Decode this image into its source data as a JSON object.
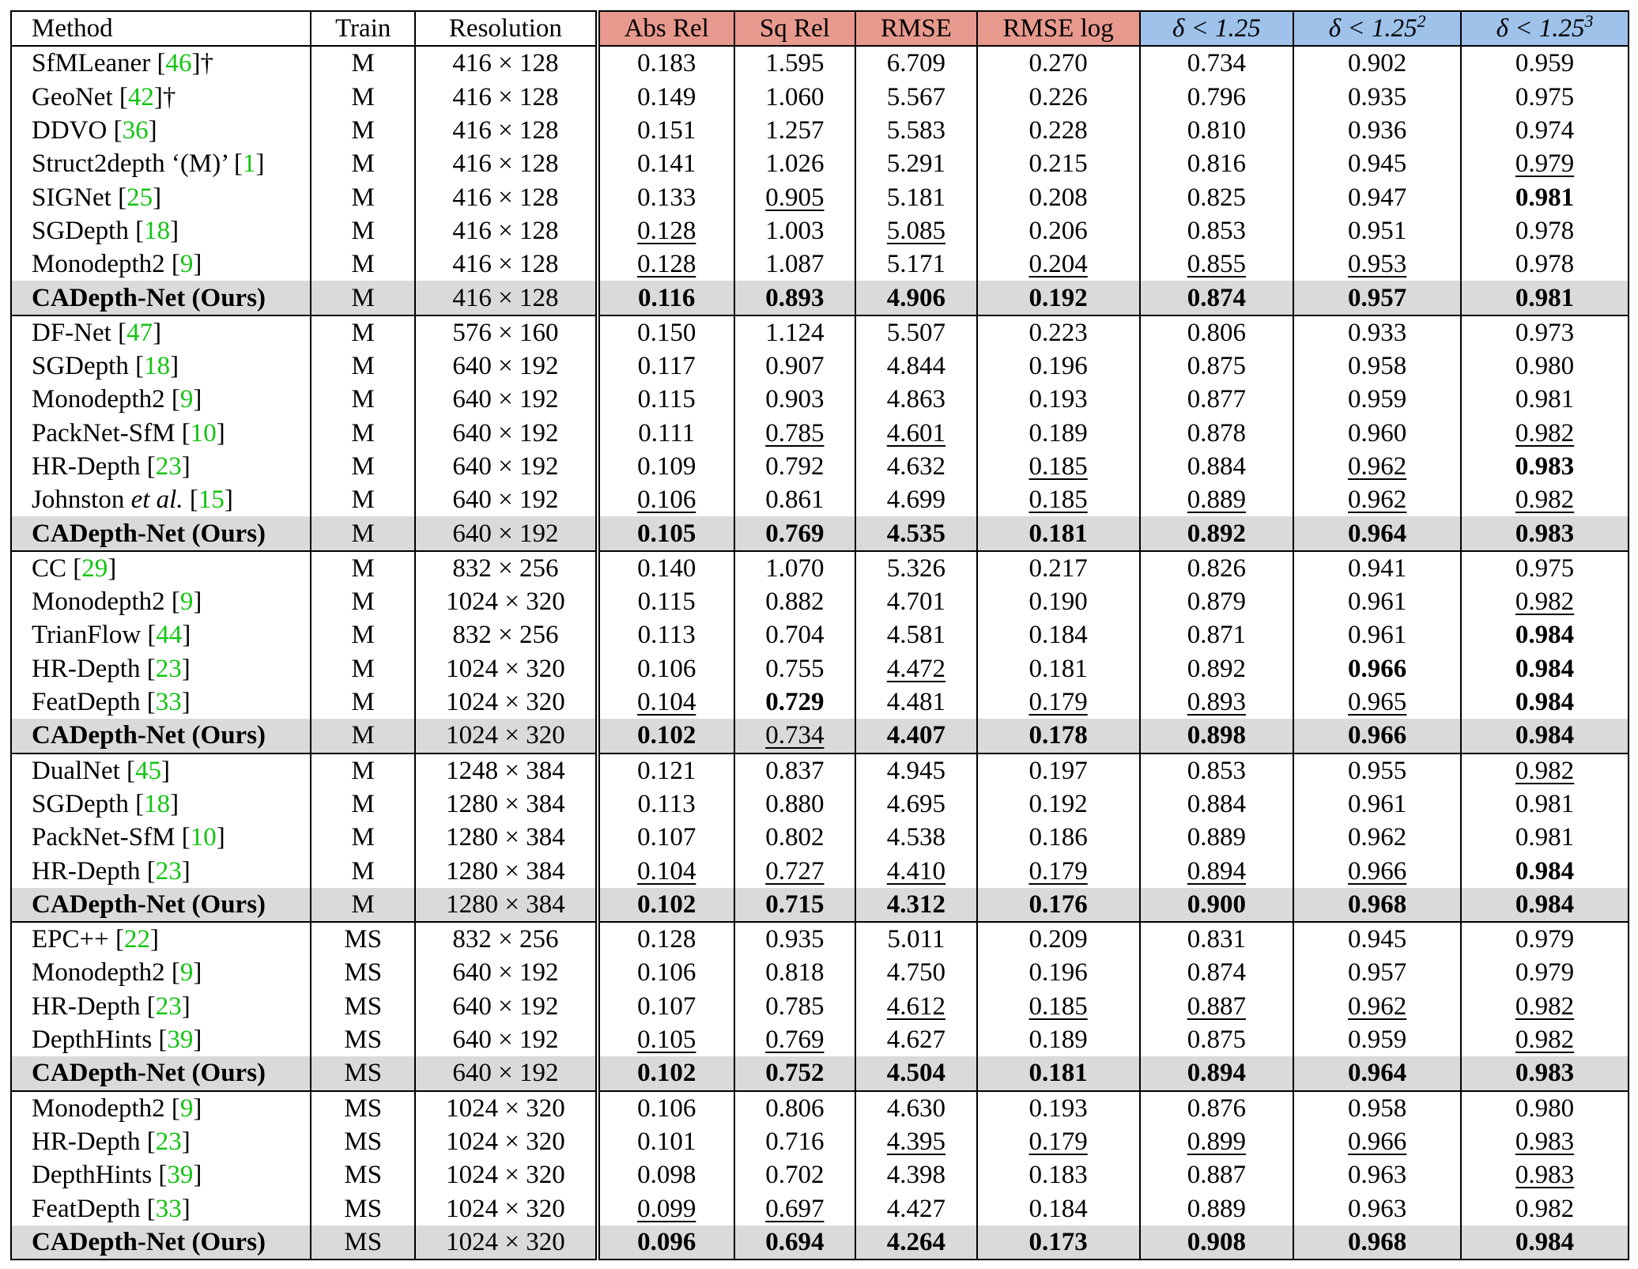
{
  "table": {
    "headers": {
      "method": "Method",
      "train": "Train",
      "resolution": "Resolution",
      "abs_rel": "Abs Rel",
      "sq_rel": "Sq Rel",
      "rmse": "RMSE",
      "rmse_log": "RMSE log",
      "a1": "δ < 1.25",
      "a2": "δ < 1.25²",
      "a3": "δ < 1.25³"
    },
    "header_colors": {
      "error_metrics": "#e8998d",
      "accuracy_metrics": "#9ec2ea",
      "ours_row": "#dadada",
      "citation": "#12c412"
    },
    "groups": [
      {
        "rows": [
          {
            "method": "SfMLeaner",
            "ref": "46",
            "dagger": "†",
            "train": "M",
            "resolution": "416 × 128",
            "values": [
              "0.183",
              "1.595",
              "6.709",
              "0.270",
              "0.734",
              "0.902",
              "0.959"
            ],
            "bold": [],
            "underline": []
          },
          {
            "method": "GeoNet",
            "ref": "42",
            "dagger": "†",
            "train": "M",
            "resolution": "416 × 128",
            "values": [
              "0.149",
              "1.060",
              "5.567",
              "0.226",
              "0.796",
              "0.935",
              "0.975"
            ],
            "bold": [],
            "underline": []
          },
          {
            "method": "DDVO",
            "ref": "36",
            "train": "M",
            "resolution": "416 × 128",
            "values": [
              "0.151",
              "1.257",
              "5.583",
              "0.228",
              "0.810",
              "0.936",
              "0.974"
            ],
            "bold": [],
            "underline": []
          },
          {
            "method": "Struct2depth ‘(M)’",
            "ref": "1",
            "train": "M",
            "resolution": "416 × 128",
            "values": [
              "0.141",
              "1.026",
              "5.291",
              "0.215",
              "0.816",
              "0.945",
              "0.979"
            ],
            "bold": [],
            "underline": [
              6
            ]
          },
          {
            "method": "SIGNet",
            "ref": "25",
            "train": "M",
            "resolution": "416 × 128",
            "values": [
              "0.133",
              "0.905",
              "5.181",
              "0.208",
              "0.825",
              "0.947",
              "0.981"
            ],
            "bold": [
              6
            ],
            "underline": [
              1
            ]
          },
          {
            "method": "SGDepth",
            "ref": "18",
            "train": "M",
            "resolution": "416 × 128",
            "values": [
              "0.128",
              "1.003",
              "5.085",
              "0.206",
              "0.853",
              "0.951",
              "0.978"
            ],
            "bold": [],
            "underline": [
              0,
              2
            ]
          },
          {
            "method": "Monodepth2",
            "ref": "9",
            "train": "M",
            "resolution": "416 × 128",
            "values": [
              "0.128",
              "1.087",
              "5.171",
              "0.204",
              "0.855",
              "0.953",
              "0.978"
            ],
            "bold": [],
            "underline": [
              0,
              3,
              4,
              5
            ]
          },
          {
            "method": "CADepth-Net (Ours)",
            "ours": true,
            "train": "M",
            "resolution": "416 × 128",
            "values": [
              "0.116",
              "0.893",
              "4.906",
              "0.192",
              "0.874",
              "0.957",
              "0.981"
            ],
            "bold": [
              0,
              1,
              2,
              3,
              4,
              5,
              6
            ],
            "underline": []
          }
        ]
      },
      {
        "rows": [
          {
            "method": "DF-Net",
            "ref": "47",
            "train": "M",
            "resolution": "576 × 160",
            "values": [
              "0.150",
              "1.124",
              "5.507",
              "0.223",
              "0.806",
              "0.933",
              "0.973"
            ],
            "bold": [],
            "underline": []
          },
          {
            "method": "SGDepth",
            "ref": "18",
            "train": "M",
            "resolution": "640 × 192",
            "values": [
              "0.117",
              "0.907",
              "4.844",
              "0.196",
              "0.875",
              "0.958",
              "0.980"
            ],
            "bold": [],
            "underline": []
          },
          {
            "method": "Monodepth2",
            "ref": "9",
            "train": "M",
            "resolution": "640 × 192",
            "values": [
              "0.115",
              "0.903",
              "4.863",
              "0.193",
              "0.877",
              "0.959",
              "0.981"
            ],
            "bold": [],
            "underline": []
          },
          {
            "method": "PackNet-SfM",
            "ref": "10",
            "train": "M",
            "resolution": "640 × 192",
            "values": [
              "0.111",
              "0.785",
              "4.601",
              "0.189",
              "0.878",
              "0.960",
              "0.982"
            ],
            "bold": [],
            "underline": [
              1,
              2,
              6
            ]
          },
          {
            "method": "HR-Depth",
            "ref": "23",
            "train": "M",
            "resolution": "640 × 192",
            "values": [
              "0.109",
              "0.792",
              "4.632",
              "0.185",
              "0.884",
              "0.962",
              "0.983"
            ],
            "bold": [
              6
            ],
            "underline": [
              3,
              5
            ]
          },
          {
            "method": "Johnston",
            "etal": "et al.",
            "ref": "15",
            "train": "M",
            "resolution": "640 × 192",
            "values": [
              "0.106",
              "0.861",
              "4.699",
              "0.185",
              "0.889",
              "0.962",
              "0.982"
            ],
            "bold": [],
            "underline": [
              0,
              3,
              4,
              5,
              6
            ]
          },
          {
            "method": "CADepth-Net (Ours)",
            "ours": true,
            "train": "M",
            "resolution": "640 × 192",
            "values": [
              "0.105",
              "0.769",
              "4.535",
              "0.181",
              "0.892",
              "0.964",
              "0.983"
            ],
            "bold": [
              0,
              1,
              2,
              3,
              4,
              5,
              6
            ],
            "underline": []
          }
        ]
      },
      {
        "rows": [
          {
            "method": "CC",
            "ref": "29",
            "train": "M",
            "resolution": "832 × 256",
            "values": [
              "0.140",
              "1.070",
              "5.326",
              "0.217",
              "0.826",
              "0.941",
              "0.975"
            ],
            "bold": [],
            "underline": []
          },
          {
            "method": "Monodepth2",
            "ref": "9",
            "train": "M",
            "resolution": "1024 × 320",
            "values": [
              "0.115",
              "0.882",
              "4.701",
              "0.190",
              "0.879",
              "0.961",
              "0.982"
            ],
            "bold": [],
            "underline": [
              6
            ]
          },
          {
            "method": "TrianFlow",
            "ref": "44",
            "train": "M",
            "resolution": "832 × 256",
            "values": [
              "0.113",
              "0.704",
              "4.581",
              "0.184",
              "0.871",
              "0.961",
              "0.984"
            ],
            "bold": [
              6
            ],
            "underline": []
          },
          {
            "method": "HR-Depth",
            "ref": "23",
            "train": "M",
            "resolution": "1024 × 320",
            "values": [
              "0.106",
              "0.755",
              "4.472",
              "0.181",
              "0.892",
              "0.966",
              "0.984"
            ],
            "bold": [
              5,
              6
            ],
            "underline": [
              2
            ]
          },
          {
            "method": "FeatDepth",
            "ref": "33",
            "train": "M",
            "resolution": "1024 × 320",
            "values": [
              "0.104",
              "0.729",
              "4.481",
              "0.179",
              "0.893",
              "0.965",
              "0.984"
            ],
            "bold": [
              1,
              6
            ],
            "underline": [
              0,
              3,
              4,
              5
            ]
          },
          {
            "method": "CADepth-Net (Ours)",
            "ours": true,
            "train": "M",
            "resolution": "1024 × 320",
            "values": [
              "0.102",
              "0.734",
              "4.407",
              "0.178",
              "0.898",
              "0.966",
              "0.984"
            ],
            "bold": [
              0,
              2,
              3,
              4,
              5,
              6
            ],
            "underline": [
              1
            ]
          }
        ]
      },
      {
        "rows": [
          {
            "method": "DualNet",
            "ref": "45",
            "train": "M",
            "resolution": "1248 × 384",
            "values": [
              "0.121",
              "0.837",
              "4.945",
              "0.197",
              "0.853",
              "0.955",
              "0.982"
            ],
            "bold": [],
            "underline": [
              6
            ]
          },
          {
            "method": "SGDepth",
            "ref": "18",
            "train": "M",
            "resolution": "1280 × 384",
            "values": [
              "0.113",
              "0.880",
              "4.695",
              "0.192",
              "0.884",
              "0.961",
              "0.981"
            ],
            "bold": [],
            "underline": []
          },
          {
            "method": "PackNet-SfM",
            "ref": "10",
            "train": "M",
            "resolution": "1280 × 384",
            "values": [
              "0.107",
              "0.802",
              "4.538",
              "0.186",
              "0.889",
              "0.962",
              "0.981"
            ],
            "bold": [],
            "underline": []
          },
          {
            "method": "HR-Depth",
            "ref": "23",
            "train": "M",
            "resolution": "1280 × 384",
            "values": [
              "0.104",
              "0.727",
              "4.410",
              "0.179",
              "0.894",
              "0.966",
              "0.984"
            ],
            "bold": [
              6
            ],
            "underline": [
              0,
              1,
              2,
              3,
              4,
              5
            ]
          },
          {
            "method": "CADepth-Net (Ours)",
            "ours": true,
            "train": "M",
            "resolution": "1280 × 384",
            "values": [
              "0.102",
              "0.715",
              "4.312",
              "0.176",
              "0.900",
              "0.968",
              "0.984"
            ],
            "bold": [
              0,
              1,
              2,
              3,
              4,
              5,
              6
            ],
            "underline": []
          }
        ]
      },
      {
        "rows": [
          {
            "method": "EPC++",
            "ref": "22",
            "train": "MS",
            "resolution": "832 × 256",
            "values": [
              "0.128",
              "0.935",
              "5.011",
              "0.209",
              "0.831",
              "0.945",
              "0.979"
            ],
            "bold": [],
            "underline": []
          },
          {
            "method": "Monodepth2",
            "ref": "9",
            "train": "MS",
            "resolution": "640 × 192",
            "values": [
              "0.106",
              "0.818",
              "4.750",
              "0.196",
              "0.874",
              "0.957",
              "0.979"
            ],
            "bold": [],
            "underline": []
          },
          {
            "method": "HR-Depth",
            "ref": "23",
            "train": "MS",
            "resolution": "640 × 192",
            "values": [
              "0.107",
              "0.785",
              "4.612",
              "0.185",
              "0.887",
              "0.962",
              "0.982"
            ],
            "bold": [],
            "underline": [
              2,
              3,
              4,
              5,
              6
            ]
          },
          {
            "method": "DepthHints",
            "ref": "39",
            "train": "MS",
            "resolution": "640 × 192",
            "values": [
              "0.105",
              "0.769",
              "4.627",
              "0.189",
              "0.875",
              "0.959",
              "0.982"
            ],
            "bold": [],
            "underline": [
              0,
              1,
              6
            ]
          },
          {
            "method": "CADepth-Net (Ours)",
            "ours": true,
            "train": "MS",
            "resolution": "640 × 192",
            "values": [
              "0.102",
              "0.752",
              "4.504",
              "0.181",
              "0.894",
              "0.964",
              "0.983"
            ],
            "bold": [
              0,
              1,
              2,
              3,
              4,
              5,
              6
            ],
            "underline": []
          }
        ]
      },
      {
        "rows": [
          {
            "method": "Monodepth2",
            "ref": "9",
            "train": "MS",
            "resolution": "1024 × 320",
            "values": [
              "0.106",
              "0.806",
              "4.630",
              "0.193",
              "0.876",
              "0.958",
              "0.980"
            ],
            "bold": [],
            "underline": []
          },
          {
            "method": "HR-Depth",
            "ref": "23",
            "train": "MS",
            "resolution": "1024 × 320",
            "values": [
              "0.101",
              "0.716",
              "4.395",
              "0.179",
              "0.899",
              "0.966",
              "0.983"
            ],
            "bold": [],
            "underline": [
              2,
              3,
              4,
              5,
              6
            ]
          },
          {
            "method": "DepthHints",
            "ref": "39",
            "train": "MS",
            "resolution": "1024 × 320",
            "values": [
              "0.098",
              "0.702",
              "4.398",
              "0.183",
              "0.887",
              "0.963",
              "0.983"
            ],
            "bold": [],
            "underline": [
              6
            ]
          },
          {
            "method": "FeatDepth",
            "ref": "33",
            "train": "MS",
            "resolution": "1024 × 320",
            "values": [
              "0.099",
              "0.697",
              "4.427",
              "0.184",
              "0.889",
              "0.963",
              "0.982"
            ],
            "bold": [],
            "underline": [
              0,
              1
            ]
          },
          {
            "method": "CADepth-Net (Ours)",
            "ours": true,
            "train": "MS",
            "resolution": "1024 × 320",
            "values": [
              "0.096",
              "0.694",
              "4.264",
              "0.173",
              "0.908",
              "0.968",
              "0.984"
            ],
            "bold": [
              0,
              1,
              2,
              3,
              4,
              5,
              6
            ],
            "underline": []
          }
        ]
      }
    ]
  }
}
